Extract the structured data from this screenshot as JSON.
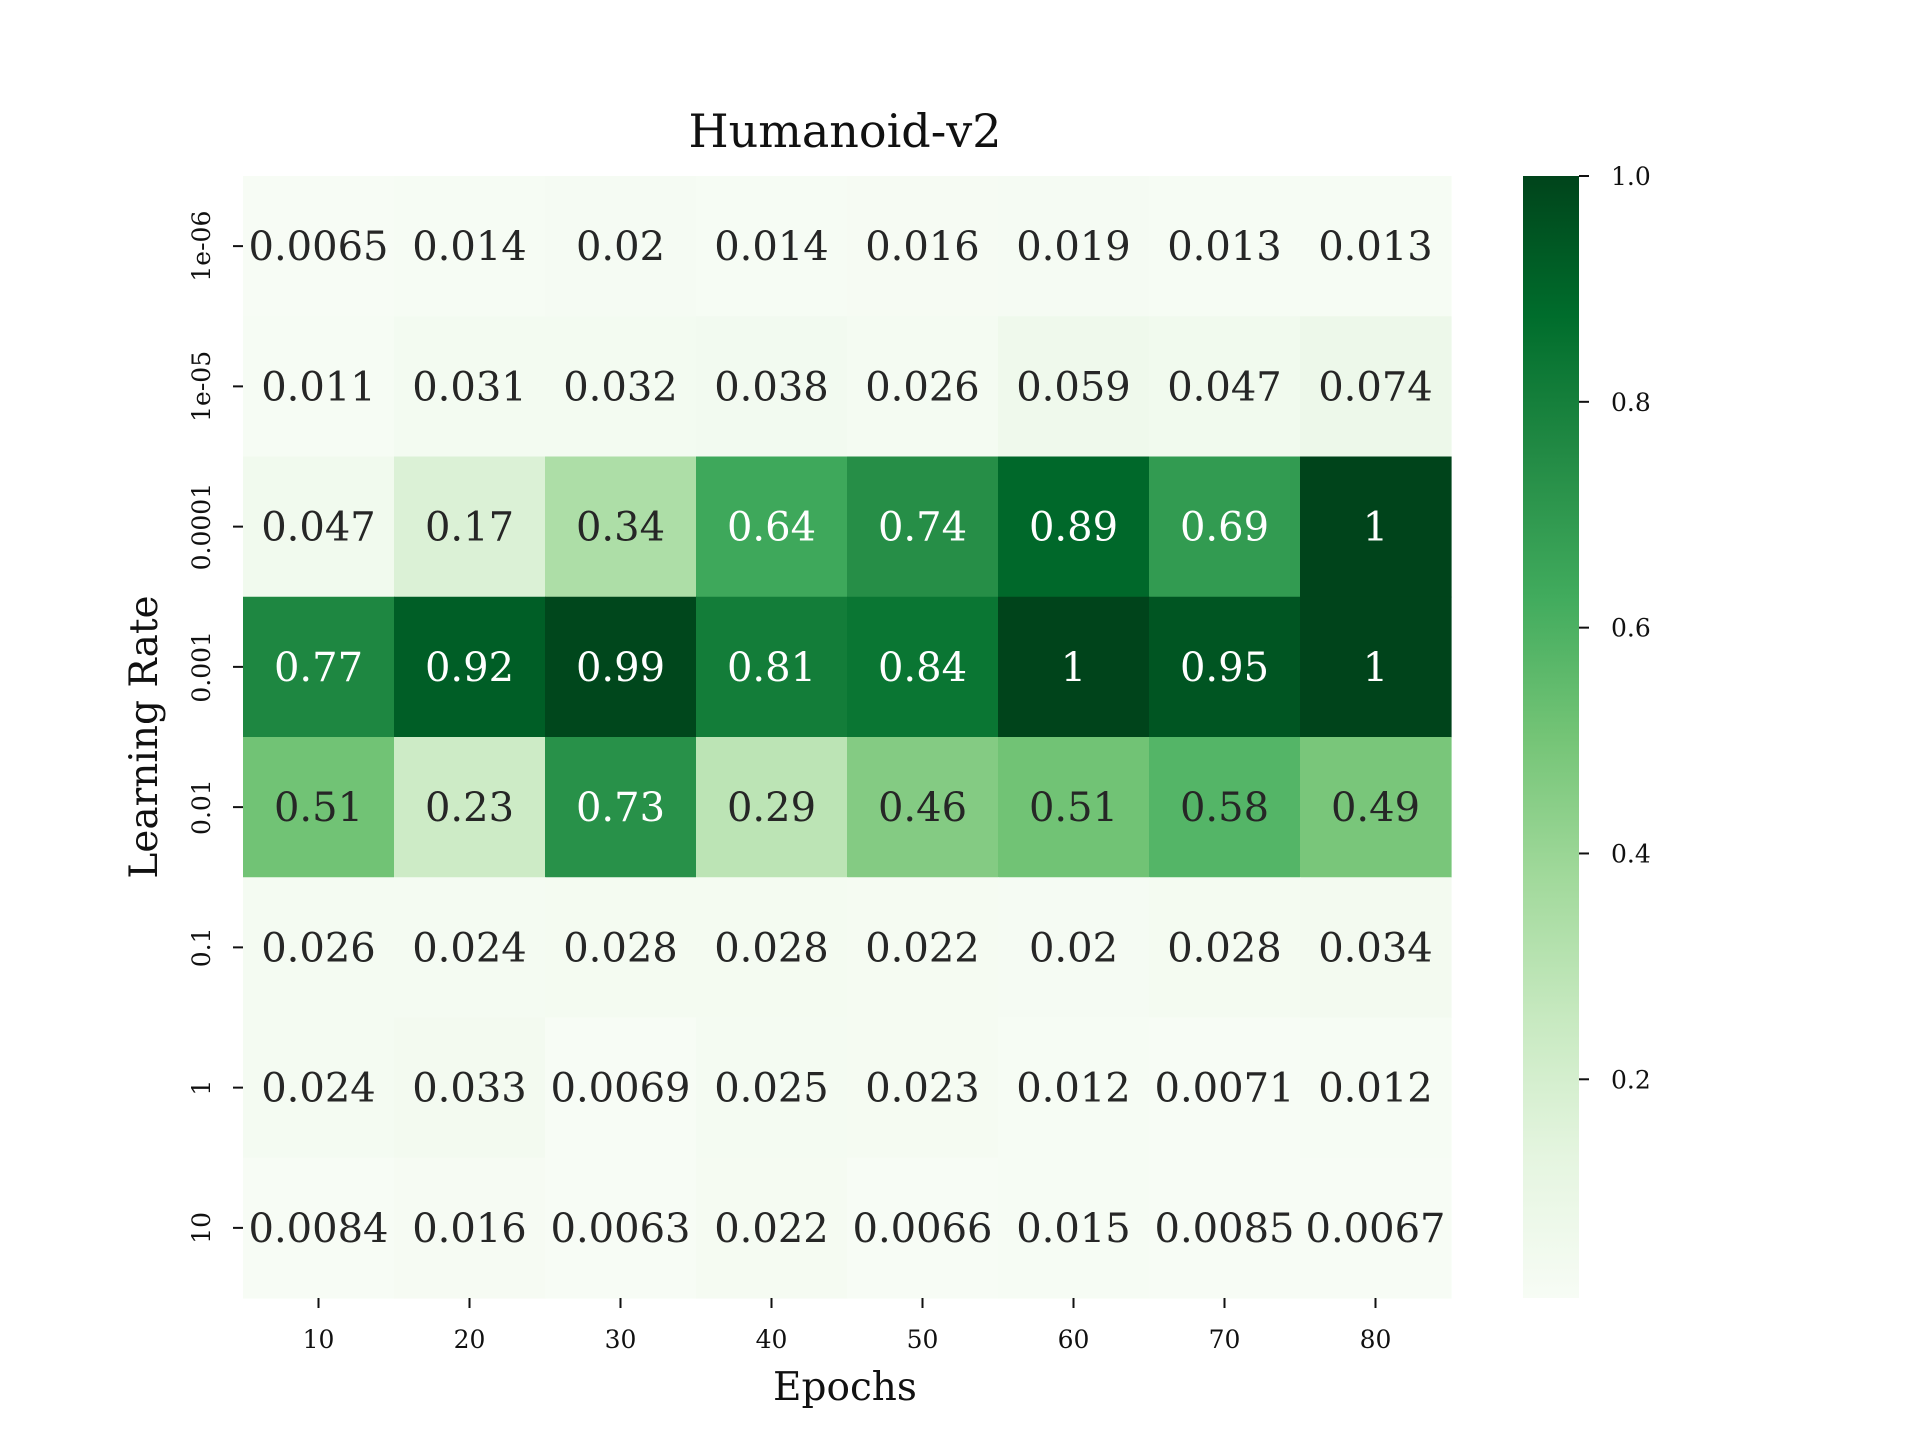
{
  "chart_data": {
    "type": "heatmap",
    "title": "Humanoid-v2",
    "xlabel": "Epochs",
    "ylabel": "Learning Rate",
    "x": [
      "10",
      "20",
      "30",
      "40",
      "50",
      "60",
      "70",
      "80"
    ],
    "y": [
      "1e-06",
      "1e-05",
      "0.0001",
      "0.001",
      "0.01",
      "0.1",
      "1",
      "10"
    ],
    "values": [
      [
        0.0065,
        0.014,
        0.02,
        0.014,
        0.016,
        0.019,
        0.013,
        0.013
      ],
      [
        0.011,
        0.031,
        0.032,
        0.038,
        0.026,
        0.059,
        0.047,
        0.074
      ],
      [
        0.047,
        0.17,
        0.34,
        0.64,
        0.74,
        0.89,
        0.69,
        1
      ],
      [
        0.77,
        0.92,
        0.99,
        0.81,
        0.84,
        1,
        0.95,
        1
      ],
      [
        0.51,
        0.23,
        0.73,
        0.29,
        0.46,
        0.51,
        0.58,
        0.49
      ],
      [
        0.026,
        0.024,
        0.028,
        0.028,
        0.022,
        0.02,
        0.028,
        0.034
      ],
      [
        0.024,
        0.033,
        0.0069,
        0.025,
        0.023,
        0.012,
        0.0071,
        0.012
      ],
      [
        0.0084,
        0.016,
        0.0063,
        0.022,
        0.0066,
        0.015,
        0.0085,
        0.0067
      ]
    ],
    "value_labels": [
      [
        "0.0065",
        "0.014",
        "0.02",
        "0.014",
        "0.016",
        "0.019",
        "0.013",
        "0.013"
      ],
      [
        "0.011",
        "0.031",
        "0.032",
        "0.038",
        "0.026",
        "0.059",
        "0.047",
        "0.074"
      ],
      [
        "0.047",
        "0.17",
        "0.34",
        "0.64",
        "0.74",
        "0.89",
        "0.69",
        "1"
      ],
      [
        "0.77",
        "0.92",
        "0.99",
        "0.81",
        "0.84",
        "1",
        "0.95",
        "1"
      ],
      [
        "0.51",
        "0.23",
        "0.73",
        "0.29",
        "0.46",
        "0.51",
        "0.58",
        "0.49"
      ],
      [
        "0.026",
        "0.024",
        "0.028",
        "0.028",
        "0.022",
        "0.02",
        "0.028",
        "0.034"
      ],
      [
        "0.024",
        "0.033",
        "0.0069",
        "0.025",
        "0.023",
        "0.012",
        "0.0071",
        "0.012"
      ],
      [
        "0.0084",
        "0.016",
        "0.0063",
        "0.022",
        "0.0066",
        "0.015",
        "0.0085",
        "0.0067"
      ]
    ],
    "colorbar": {
      "colormap": "Greens",
      "range": [
        0.0063,
        1.0
      ],
      "ticks": [
        0.2,
        0.4,
        0.6,
        0.8,
        1.0
      ],
      "tick_labels": [
        "0.2",
        "0.4",
        "0.6",
        "0.8",
        "1.0"
      ]
    },
    "grid": false,
    "legend": "none"
  }
}
